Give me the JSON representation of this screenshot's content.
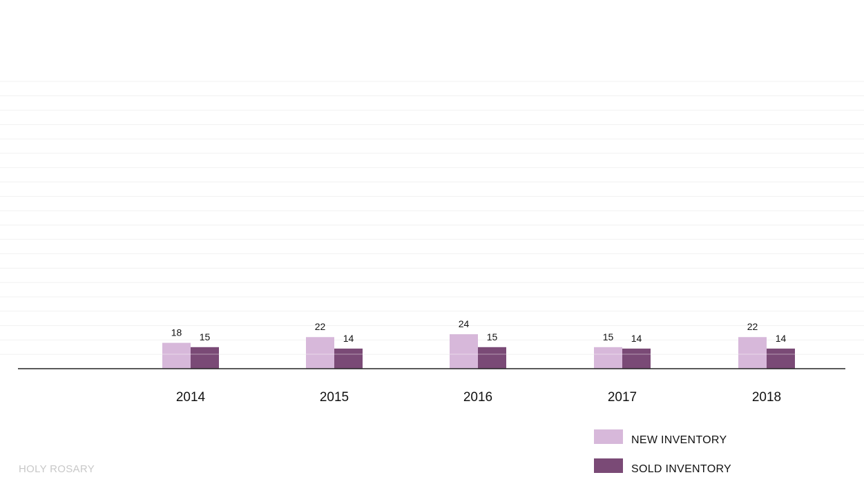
{
  "chart_data": {
    "type": "bar",
    "categories": [
      "2014",
      "2015",
      "2016",
      "2017",
      "2018"
    ],
    "series": [
      {
        "name": "NEW INVENTORY",
        "color": "#d7b8da",
        "values": [
          18,
          22,
          24,
          15,
          22
        ]
      },
      {
        "name": "SOLD INVENTORY",
        "color": "#7a4a76",
        "values": [
          15,
          14,
          15,
          14,
          14
        ]
      }
    ],
    "title": "",
    "xlabel": "",
    "ylabel": "",
    "ylim": [
      0,
      200
    ],
    "grid": true,
    "legend_position": "bottom-right"
  },
  "footer": {
    "text": "HOLY ROSARY"
  }
}
